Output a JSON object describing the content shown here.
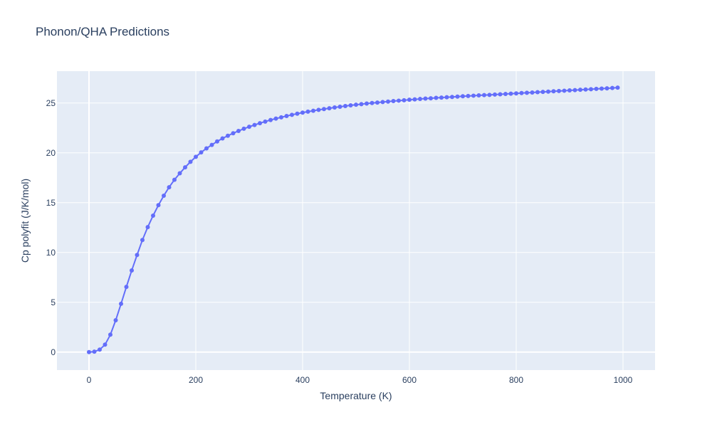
{
  "chart_data": {
    "type": "line",
    "title": "Phonon/QHA Predictions",
    "xlabel": "Temperature (K)",
    "ylabel": "Cp polyfit (J/K/mol)",
    "xlim": [
      -60,
      1060
    ],
    "ylim": [
      -1.8,
      28.2
    ],
    "x_ticks": [
      0,
      200,
      400,
      600,
      800,
      1000
    ],
    "y_ticks": [
      0,
      5,
      10,
      15,
      20,
      25
    ],
    "grid": true,
    "colors": {
      "plot_bg": "#e5ecf6",
      "grid": "#ffffff",
      "series": "#636efa",
      "text": "#2a3f5f"
    },
    "series": [
      {
        "mode": "lines+markers",
        "x": [
          0,
          10,
          20,
          30,
          40,
          50,
          60,
          70,
          80,
          90,
          100,
          110,
          120,
          130,
          140,
          150,
          160,
          170,
          180,
          190,
          200,
          210,
          220,
          230,
          240,
          250,
          260,
          270,
          280,
          290,
          300,
          310,
          320,
          330,
          340,
          350,
          360,
          370,
          380,
          390,
          400,
          410,
          420,
          430,
          440,
          450,
          460,
          470,
          480,
          490,
          500,
          510,
          520,
          530,
          540,
          550,
          560,
          570,
          580,
          590,
          600,
          610,
          620,
          630,
          640,
          650,
          660,
          670,
          680,
          690,
          700,
          710,
          720,
          730,
          740,
          750,
          760,
          770,
          780,
          790,
          800,
          810,
          820,
          830,
          840,
          850,
          860,
          870,
          880,
          890,
          900,
          910,
          920,
          930,
          940,
          950,
          960,
          970,
          980,
          990
        ],
        "y": [
          0.0,
          0.05,
          0.25,
          0.75,
          1.75,
          3.2,
          4.85,
          6.55,
          8.2,
          9.75,
          11.25,
          12.55,
          13.7,
          14.75,
          15.7,
          16.55,
          17.3,
          17.95,
          18.55,
          19.1,
          19.6,
          20.05,
          20.45,
          20.8,
          21.15,
          21.45,
          21.72,
          21.97,
          22.2,
          22.42,
          22.62,
          22.8,
          22.98,
          23.14,
          23.3,
          23.44,
          23.57,
          23.7,
          23.82,
          23.93,
          24.04,
          24.14,
          24.23,
          24.32,
          24.4,
          24.48,
          24.56,
          24.63,
          24.7,
          24.77,
          24.83,
          24.89,
          24.95,
          25.0,
          25.05,
          25.1,
          25.15,
          25.2,
          25.24,
          25.28,
          25.33,
          25.37,
          25.41,
          25.45,
          25.48,
          25.52,
          25.55,
          25.58,
          25.61,
          25.65,
          25.68,
          25.71,
          25.74,
          25.77,
          25.8,
          25.82,
          25.85,
          25.88,
          25.91,
          25.94,
          25.97,
          26.0,
          26.03,
          26.06,
          26.09,
          26.12,
          26.15,
          26.18,
          26.21,
          26.24,
          26.27,
          26.3,
          26.33,
          26.36,
          26.39,
          26.42,
          26.45,
          26.48,
          26.51,
          26.55
        ]
      }
    ]
  }
}
